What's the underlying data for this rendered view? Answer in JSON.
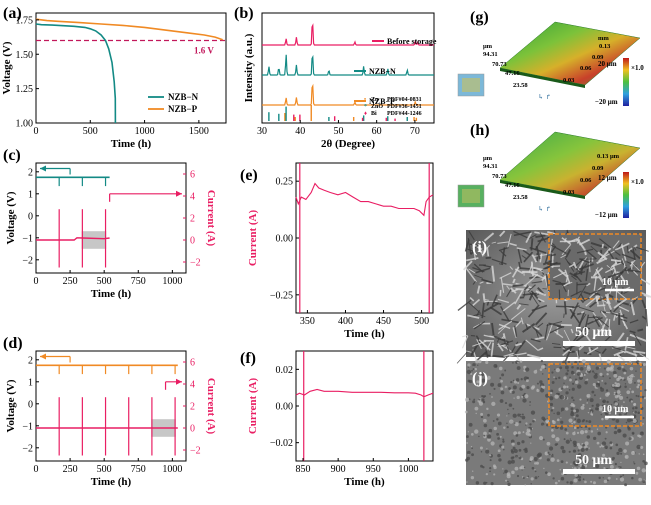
{
  "chart_data": [
    {
      "id": "a",
      "panel_label": "(a)",
      "type": "line",
      "xlabel": "Time (h)",
      "ylabel": "Voltage (V)",
      "xlim": [
        0,
        1750
      ],
      "ylim": [
        1.0,
        1.8
      ],
      "xticks": [
        0,
        500,
        1000,
        1500
      ],
      "yticks": [
        1.0,
        1.25,
        1.5,
        1.75
      ],
      "xtick_labels": [
        "0",
        "500",
        "1000",
        "1500"
      ],
      "ytick_labels": [
        "1.00",
        "1.25",
        "1.50",
        "1.75"
      ],
      "reference_line": {
        "y": 1.6,
        "label": "1.6 V",
        "color": "#c2185b"
      },
      "series": [
        {
          "name": "NZB−N",
          "color": "#138a85",
          "x": [
            0,
            50,
            150,
            250,
            350,
            450,
            500,
            550,
            600,
            640,
            670,
            700,
            720,
            730,
            731
          ],
          "y": [
            1.72,
            1.715,
            1.712,
            1.708,
            1.703,
            1.695,
            1.685,
            1.67,
            1.64,
            1.6,
            1.54,
            1.44,
            1.3,
            1.18,
            1.0
          ]
        },
        {
          "name": "NZB−P",
          "color": "#f08a24",
          "x": [
            0,
            100,
            200,
            400,
            600,
            800,
            1000,
            1200,
            1400,
            1550,
            1650,
            1720
          ],
          "y": [
            1.755,
            1.745,
            1.74,
            1.73,
            1.72,
            1.71,
            1.695,
            1.675,
            1.655,
            1.64,
            1.625,
            1.605
          ]
        }
      ]
    },
    {
      "id": "b",
      "panel_label": "(b)",
      "type": "line",
      "xlabel": "2θ (Degree)",
      "ylabel": "Intensity (a.u.)",
      "xlim": [
        30,
        75
      ],
      "xticks": [
        30,
        40,
        50,
        60,
        70
      ],
      "xtick_labels": [
        "30",
        "40",
        "50",
        "60",
        "70"
      ],
      "series": [
        {
          "name": "Before storage",
          "color": "#e91e63",
          "peaks_2theta": [
            36.3,
            39.0,
            43.2,
            54.3,
            70.1,
            70.7
          ],
          "peak_heights": [
            0.25,
            0.3,
            1.0,
            0.12,
            0.12,
            0.1
          ]
        },
        {
          "name": "NZB−N",
          "color": "#138a85",
          "peaks_2theta": [
            31.8,
            34.4,
            36.3,
            39.0,
            43.2,
            47.5,
            56.6,
            62.9,
            68.0
          ],
          "peak_heights": [
            0.35,
            0.3,
            0.85,
            0.4,
            0.95,
            0.2,
            0.35,
            0.25,
            0.2
          ]
        },
        {
          "name": "NZB−P",
          "color": "#f08a24",
          "peaks_2theta": [
            36.3,
            39.0,
            43.2,
            54.3,
            70.1
          ],
          "peak_heights": [
            0.3,
            0.3,
            1.0,
            0.12,
            0.12
          ]
        }
      ],
      "references": [
        {
          "name": "Zn",
          "pdf": "PDF#04-0831",
          "color": "#f08a24",
          "marker": "•",
          "positions": [
            36.3,
            39.0,
            43.2,
            54.3,
            70.1,
            70.7
          ],
          "heights": [
            0.5,
            0.25,
            1.0,
            0.25,
            0.25,
            0.2
          ]
        },
        {
          "name": "ZnO",
          "pdf": "PDF#36-1451",
          "color": "#138a85",
          "marker": "*",
          "positions": [
            31.8,
            34.4,
            36.3,
            47.5,
            56.6,
            62.9,
            68.0
          ],
          "heights": [
            0.55,
            0.45,
            0.9,
            0.25,
            0.35,
            0.3,
            0.25
          ]
        },
        {
          "name": "Bi",
          "pdf": "PDF#44-1246",
          "color": "#e91e63",
          "marker": "♦",
          "positions": [
            27.2,
            38.0,
            39.6,
            48.7,
            56.0,
            62.2,
            64.5
          ],
          "heights": [
            1.0,
            0.4,
            0.4,
            0.3,
            0.2,
            0.2,
            0.15
          ]
        }
      ]
    },
    {
      "id": "c",
      "panel_label": "(c)",
      "type": "line",
      "xlabel": "Time (h)",
      "ylabel_left": "Voltage (V)",
      "ylabel_right": "Current (A)",
      "xlim": [
        0,
        1100
      ],
      "ylim_left": [
        -2.6,
        2.4
      ],
      "ylim_right": [
        -3,
        7
      ],
      "xticks": [
        0,
        250,
        500,
        750,
        1000
      ],
      "xtick_labels": [
        "0",
        "250",
        "500",
        "750",
        "1000"
      ],
      "yticks_left": [
        -2,
        -1,
        0,
        1,
        2
      ],
      "yticks_right": [
        -2,
        0,
        2,
        4,
        6
      ],
      "ytick_labels_left": [
        "−2",
        "−1",
        "0",
        "1",
        "2"
      ],
      "ytick_labels_right": [
        "−2",
        "0",
        "2",
        "4",
        "6"
      ],
      "voltage": {
        "color": "#138a85",
        "x": [
          0,
          540
        ],
        "y": [
          1.75,
          1.75
        ],
        "spikes_x": [
          170,
          340,
          510
        ]
      },
      "current": {
        "color": "#e91e63",
        "x": [
          0,
          280,
          300,
          340,
          500,
          540
        ],
        "y": [
          0,
          0,
          0.2,
          0.18,
          0.12,
          0.18
        ],
        "spikes_x": [
          170,
          340,
          510
        ]
      },
      "highlight_x": [
        335,
        515
      ]
    },
    {
      "id": "d",
      "panel_label": "(d)",
      "type": "line",
      "xlabel": "Time (h)",
      "ylabel_left": "Voltage (V)",
      "ylabel_right": "Current (A)",
      "xlim": [
        0,
        1100
      ],
      "ylim_left": [
        -2.6,
        2.4
      ],
      "ylim_right": [
        -3,
        7
      ],
      "xticks": [
        0,
        250,
        500,
        750,
        1000
      ],
      "xtick_labels": [
        "0",
        "250",
        "500",
        "750",
        "1000"
      ],
      "yticks_left": [
        -2,
        -1,
        0,
        1,
        2
      ],
      "yticks_right": [
        -2,
        0,
        2,
        4,
        6
      ],
      "ytick_labels_left": [
        "−2",
        "−1",
        "0",
        "1",
        "2"
      ],
      "ytick_labels_right": [
        "−2",
        "0",
        "2",
        "4",
        "6"
      ],
      "voltage": {
        "color": "#f08a24",
        "x": [
          0,
          1040
        ],
        "y": [
          1.75,
          1.75
        ],
        "spikes_x": [
          170,
          340,
          510,
          680,
          850,
          1020
        ]
      },
      "current": {
        "color": "#e91e63",
        "x": [
          0,
          1040
        ],
        "y": [
          0,
          0
        ],
        "spikes_x": [
          170,
          340,
          510,
          680,
          850,
          1020
        ]
      },
      "highlight_x": [
        845,
        1025
      ]
    },
    {
      "id": "e",
      "panel_label": "(e)",
      "type": "line",
      "xlabel": "Time (h)",
      "ylabel": "Current (A)",
      "xlim": [
        335,
        515
      ],
      "ylim": [
        -0.33,
        0.33
      ],
      "xticks": [
        350,
        400,
        450,
        500
      ],
      "xtick_labels": [
        "350",
        "400",
        "450",
        "500"
      ],
      "yticks": [
        -0.25,
        0.0,
        0.25
      ],
      "ytick_labels": [
        "−0.25",
        "0.00",
        "0.25"
      ],
      "series": [
        {
          "name": "Current",
          "color": "#e91e63",
          "x": [
            335,
            338,
            342,
            348,
            355,
            360,
            365,
            372,
            380,
            390,
            400,
            410,
            420,
            430,
            440,
            450,
            460,
            470,
            480,
            490,
            497,
            503,
            506,
            510,
            515
          ],
          "y": [
            0.18,
            0.15,
            0.18,
            0.17,
            0.2,
            0.24,
            0.22,
            0.21,
            0.2,
            0.19,
            0.2,
            0.18,
            0.16,
            0.16,
            0.15,
            0.14,
            0.14,
            0.13,
            0.13,
            0.13,
            0.12,
            0.1,
            0.16,
            0.18,
            0.19
          ]
        }
      ],
      "spikes_x": [
        340,
        510
      ]
    },
    {
      "id": "f",
      "panel_label": "(f)",
      "type": "line",
      "xlabel": "Time (h)",
      "ylabel": "Current (A)",
      "xlim": [
        840,
        1035
      ],
      "ylim": [
        -0.03,
        0.03
      ],
      "xticks": [
        850,
        900,
        950,
        1000
      ],
      "xtick_labels": [
        "850",
        "900",
        "950",
        "1000"
      ],
      "yticks": [
        -0.02,
        0.0,
        0.02
      ],
      "ytick_labels": [
        "−0.02",
        "0.00",
        "0.02"
      ],
      "series": [
        {
          "name": "Current",
          "color": "#e91e63",
          "x": [
            840,
            845,
            852,
            860,
            870,
            880,
            900,
            920,
            940,
            960,
            980,
            1000,
            1010,
            1018,
            1022,
            1028,
            1035
          ],
          "y": [
            0.006,
            0.007,
            0.006,
            0.008,
            0.009,
            0.008,
            0.008,
            0.0075,
            0.0075,
            0.0075,
            0.0072,
            0.0072,
            0.007,
            0.006,
            0.005,
            0.006,
            0.007
          ]
        }
      ],
      "spikes_x": [
        851,
        1022
      ]
    },
    {
      "id": "g",
      "panel_label": "(g)",
      "type": "heatmap",
      "axis_labels": [
        "μm",
        "94.31",
        "70.73",
        "47.16",
        "23.58",
        "mm",
        "0.13",
        "0.09",
        "0.06",
        "0.03"
      ],
      "colorbar": {
        "max": "20 μm",
        "min": "−20 μm",
        "label": "×1.0"
      }
    },
    {
      "id": "h",
      "panel_label": "(h)",
      "type": "heatmap",
      "axis_labels": [
        "μm",
        "94.31",
        "70.73",
        "47.16",
        "23.58",
        "0.13 μm",
        "0.09",
        "0.06",
        "0.03"
      ],
      "colorbar": {
        "max": "12 μm",
        "min": "−12 μm",
        "label": "×1.0"
      }
    },
    {
      "id": "i",
      "panel_label": "(i)",
      "type": "table",
      "scale_bar_main": "50 μm",
      "scale_bar_inset": "10 μm"
    },
    {
      "id": "j",
      "panel_label": "(j)",
      "type": "table",
      "scale_bar_main": "50 μm",
      "scale_bar_inset": "10 μm"
    }
  ]
}
